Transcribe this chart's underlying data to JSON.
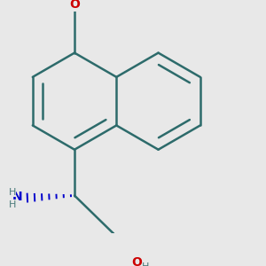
{
  "background_color": "#e8e8e8",
  "bond_color": "#2d6b6b",
  "bond_width": 1.8,
  "atom_colors": {
    "O": "#cc0000",
    "N": "#0000cc",
    "H": "#4a7a7a"
  },
  "ring_r": 0.2,
  "cx_r": 0.575,
  "cy_r": 0.595,
  "font_size_atom": 10,
  "font_size_h": 8
}
